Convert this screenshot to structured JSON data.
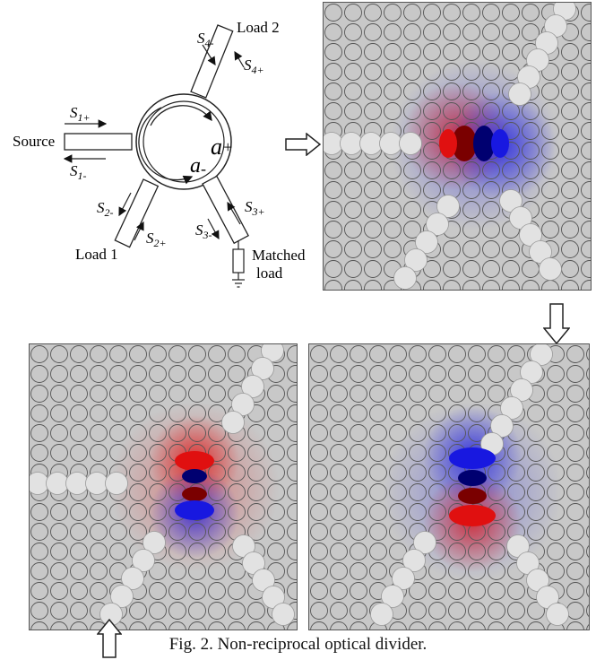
{
  "schematic": {
    "load2_label": "Load 2",
    "load1_label": "Load 1",
    "source_label": "Source",
    "matched_load_line1": "Matched",
    "matched_load_line2": "load",
    "mode_plus": "a",
    "mode_plus_sub": "+",
    "mode_minus": "a",
    "mode_minus_sub": "-",
    "ports": {
      "s1_in": {
        "base": "S",
        "sub": "1+"
      },
      "s1_out": {
        "base": "S",
        "sub": "1-"
      },
      "s2_in": {
        "base": "S",
        "sub": "2+"
      },
      "s2_out": {
        "base": "S",
        "sub": "2-"
      },
      "s3_in": {
        "base": "S",
        "sub": "3+"
      },
      "s3_out": {
        "base": "S",
        "sub": "3-"
      },
      "s4_in": {
        "base": "S",
        "sub": "4+"
      },
      "s4_out": {
        "base": "S",
        "sub": "4-"
      }
    }
  },
  "arrows": {
    "panel1_input": "right-arrow-outline",
    "panel2_input": "down-arrow-outline",
    "panel3_input": "up-arrow-outline"
  },
  "colors": {
    "background_gray": "#c8c8c8",
    "rod_stroke": "#555555",
    "field_positive": "#e01010",
    "field_negative": "#1818e0",
    "field_peak_positive": "#7a0000",
    "field_peak_negative": "#000070"
  },
  "caption": "Fig. 2. Non-reciprocal optical divider."
}
